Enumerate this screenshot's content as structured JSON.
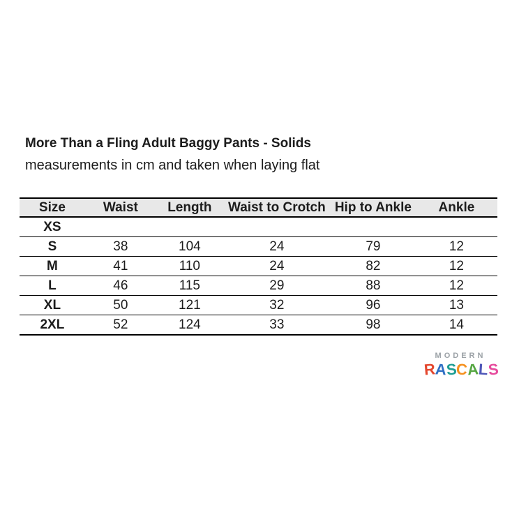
{
  "header": {
    "title": "More Than a Fling Adult Baggy Pants - Solids",
    "subtitle": "measurements in cm and taken when laying flat"
  },
  "table": {
    "columns": [
      "Size",
      "Waist",
      "Length",
      "Waist to Crotch",
      "Hip to Ankle",
      "Ankle"
    ],
    "rows": [
      {
        "size": "XS",
        "values": [
          "",
          "",
          "",
          "",
          ""
        ]
      },
      {
        "size": "S",
        "values": [
          "38",
          "104",
          "24",
          "79",
          "12"
        ]
      },
      {
        "size": "M",
        "values": [
          "41",
          "110",
          "24",
          "82",
          "12"
        ]
      },
      {
        "size": "L",
        "values": [
          "46",
          "115",
          "29",
          "88",
          "12"
        ]
      },
      {
        "size": "XL",
        "values": [
          "50",
          "121",
          "32",
          "96",
          "13"
        ]
      },
      {
        "size": "2XL",
        "values": [
          "52",
          "124",
          "33",
          "98",
          "14"
        ]
      }
    ],
    "header_bg": "#e8e8e8",
    "border_color": "#000000"
  },
  "logo": {
    "line1": "MODERN",
    "line2": "RASCALS",
    "line1_color": "#9ba1a6",
    "line2_letter_colors": [
      "#e4472e",
      "#2f6fc4",
      "#1f9e94",
      "#f59120",
      "#57a744",
      "#4e57b8",
      "#e64b9d"
    ]
  },
  "chart_data": {
    "type": "table",
    "title": "More Than a Fling Adult Baggy Pants - Solids",
    "subtitle": "measurements in cm and taken when laying flat",
    "columns": [
      "Size",
      "Waist",
      "Length",
      "Waist to Crotch",
      "Hip to Ankle",
      "Ankle"
    ],
    "rows": [
      [
        "XS",
        "",
        "",
        "",
        "",
        ""
      ],
      [
        "S",
        "38",
        "104",
        "24",
        "79",
        "12"
      ],
      [
        "M",
        "41",
        "110",
        "24",
        "82",
        "12"
      ],
      [
        "L",
        "46",
        "115",
        "29",
        "88",
        "12"
      ],
      [
        "XL",
        "50",
        "121",
        "32",
        "96",
        "13"
      ],
      [
        "2XL",
        "52",
        "124",
        "33",
        "98",
        "14"
      ]
    ]
  }
}
